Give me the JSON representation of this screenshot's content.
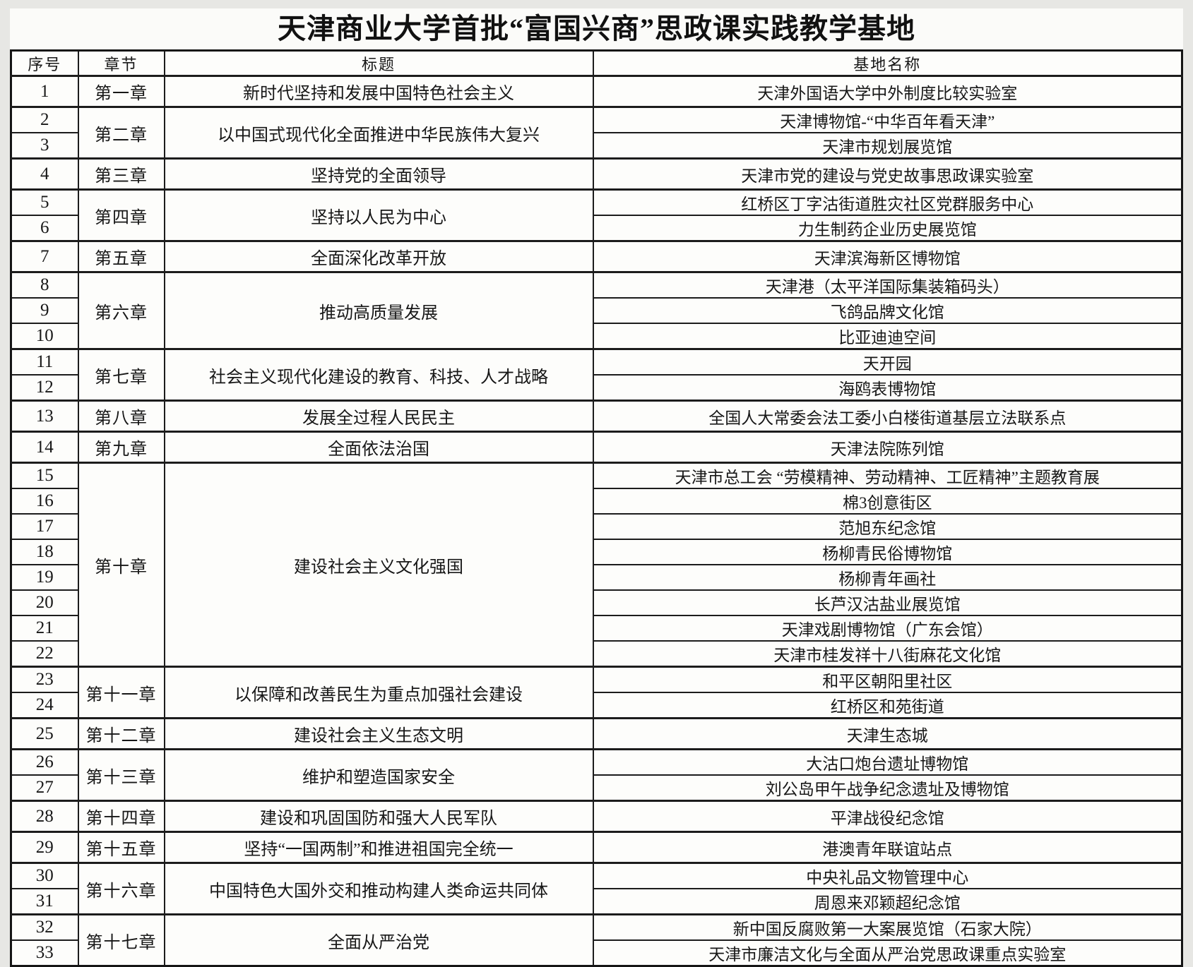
{
  "title": "天津商业大学首批“富国兴商”思政课实践教学基地",
  "columns": [
    "序号",
    "章节",
    "标题",
    "基地名称"
  ],
  "chapters": [
    {
      "chapter": "第一章",
      "title": "新时代坚持和发展中国特色社会主义",
      "rows": [
        {
          "no": "1",
          "base": "天津外国语大学中外制度比较实验室"
        }
      ]
    },
    {
      "chapter": "第二章",
      "title": "以中国式现代化全面推进中华民族伟大复兴",
      "rows": [
        {
          "no": "2",
          "base": "天津博物馆-“中华百年看天津”"
        },
        {
          "no": "3",
          "base": "天津市规划展览馆"
        }
      ]
    },
    {
      "chapter": "第三章",
      "title": "坚持党的全面领导",
      "rows": [
        {
          "no": "4",
          "base": "天津市党的建设与党史故事思政课实验室"
        }
      ]
    },
    {
      "chapter": "第四章",
      "title": "坚持以人民为中心",
      "rows": [
        {
          "no": "5",
          "base": "红桥区丁字沽街道胜灾社区党群服务中心"
        },
        {
          "no": "6",
          "base": "力生制药企业历史展览馆"
        }
      ]
    },
    {
      "chapter": "第五章",
      "title": "全面深化改革开放",
      "rows": [
        {
          "no": "7",
          "base": "天津滨海新区博物馆"
        }
      ]
    },
    {
      "chapter": "第六章",
      "title": "推动高质量发展",
      "rows": [
        {
          "no": "8",
          "base": "天津港（太平洋国际集装箱码头）"
        },
        {
          "no": "9",
          "base": "飞鸽品牌文化馆"
        },
        {
          "no": "10",
          "base": "比亚迪迪空间"
        }
      ]
    },
    {
      "chapter": "第七章",
      "title": "社会主义现代化建设的教育、科技、人才战略",
      "rows": [
        {
          "no": "11",
          "base": "天开园"
        },
        {
          "no": "12",
          "base": "海鸥表博物馆"
        }
      ]
    },
    {
      "chapter": "第八章",
      "title": "发展全过程人民民主",
      "rows": [
        {
          "no": "13",
          "base": "全国人大常委会法工委小白楼街道基层立法联系点"
        }
      ]
    },
    {
      "chapter": "第九章",
      "title": "全面依法治国",
      "rows": [
        {
          "no": "14",
          "base": "天津法院陈列馆"
        }
      ]
    },
    {
      "chapter": "第十章",
      "title": "建设社会主义文化强国",
      "rows": [
        {
          "no": "15",
          "base": "天津市总工会 “劳模精神、劳动精神、工匠精神”主题教育展"
        },
        {
          "no": "16",
          "base": "棉3创意街区"
        },
        {
          "no": "17",
          "base": "范旭东纪念馆"
        },
        {
          "no": "18",
          "base": "杨柳青民俗博物馆"
        },
        {
          "no": "19",
          "base": "杨柳青年画社"
        },
        {
          "no": "20",
          "base": "长芦汉沽盐业展览馆"
        },
        {
          "no": "21",
          "base": "天津戏剧博物馆（广东会馆）"
        },
        {
          "no": "22",
          "base": "天津市桂发祥十八街麻花文化馆"
        }
      ]
    },
    {
      "chapter": "第十一章",
      "title": "以保障和改善民生为重点加强社会建设",
      "rows": [
        {
          "no": "23",
          "base": "和平区朝阳里社区"
        },
        {
          "no": "24",
          "base": "红桥区和苑街道"
        }
      ]
    },
    {
      "chapter": "第十二章",
      "title": "建设社会主义生态文明",
      "rows": [
        {
          "no": "25",
          "base": "天津生态城"
        }
      ]
    },
    {
      "chapter": "第十三章",
      "title": "维护和塑造国家安全",
      "rows": [
        {
          "no": "26",
          "base": "大沽口炮台遗址博物馆"
        },
        {
          "no": "27",
          "base": "刘公岛甲午战争纪念遗址及博物馆"
        }
      ]
    },
    {
      "chapter": "第十四章",
      "title": "建设和巩固国防和强大人民军队",
      "rows": [
        {
          "no": "28",
          "base": "平津战役纪念馆"
        }
      ]
    },
    {
      "chapter": "第十五章",
      "title": "坚持“一国两制”和推进祖国完全统一",
      "rows": [
        {
          "no": "29",
          "base": "港澳青年联谊站点"
        }
      ]
    },
    {
      "chapter": "第十六章",
      "title": "中国特色大国外交和推动构建人类命运共同体",
      "rows": [
        {
          "no": "30",
          "base": "中央礼品文物管理中心"
        },
        {
          "no": "31",
          "base": "周恩来邓颖超纪念馆"
        }
      ]
    },
    {
      "chapter": "第十七章",
      "title": "全面从严治党",
      "rows": [
        {
          "no": "32",
          "base": "新中国反腐败第一大案展览馆（石家大院）"
        },
        {
          "no": "33",
          "base": "天津市廉洁文化与全面从严治党思政课重点实验室"
        }
      ]
    }
  ]
}
